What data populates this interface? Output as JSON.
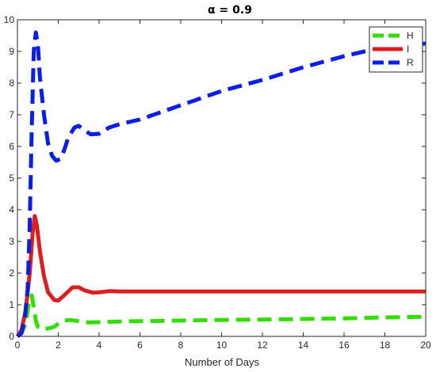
{
  "chart_data": {
    "type": "line",
    "title": "α = 0.9",
    "xlabel": "Number of Days",
    "ylabel": "",
    "xlim": [
      0,
      20
    ],
    "ylim": [
      0,
      10
    ],
    "xticks": [
      0,
      2,
      4,
      6,
      8,
      10,
      12,
      14,
      16,
      18,
      20
    ],
    "yticks": [
      0,
      1,
      2,
      3,
      4,
      5,
      6,
      7,
      8,
      9,
      10
    ],
    "legend_position": "top-right",
    "grid": false,
    "series": [
      {
        "name": "H",
        "color": "#33dd00",
        "style": "dashed",
        "x": [
          0,
          0.2,
          0.4,
          0.55,
          0.7,
          0.8,
          0.9,
          1.0,
          1.2,
          1.5,
          1.8,
          2.0,
          2.3,
          2.6,
          3.0,
          3.5,
          4.0,
          5.0,
          6.0,
          8.0,
          10.0,
          12.0,
          14.0,
          16.0,
          18.0,
          20.0
        ],
        "y": [
          0,
          0.1,
          0.4,
          1.0,
          1.3,
          0.9,
          0.5,
          0.3,
          0.22,
          0.25,
          0.3,
          0.4,
          0.5,
          0.52,
          0.48,
          0.44,
          0.45,
          0.47,
          0.48,
          0.5,
          0.52,
          0.53,
          0.55,
          0.57,
          0.6,
          0.62
        ]
      },
      {
        "name": "I",
        "color": "#dd1e1e",
        "style": "solid",
        "x": [
          0,
          0.2,
          0.4,
          0.6,
          0.75,
          0.85,
          0.95,
          1.1,
          1.3,
          1.5,
          1.8,
          2.0,
          2.3,
          2.7,
          3.0,
          3.3,
          3.7,
          4.0,
          4.5,
          5.0,
          6.0,
          8.0,
          10.0,
          12.0,
          14.0,
          16.0,
          18.0,
          20.0
        ],
        "y": [
          0,
          0.2,
          0.8,
          2.0,
          3.3,
          3.8,
          3.5,
          2.7,
          1.9,
          1.4,
          1.15,
          1.13,
          1.3,
          1.55,
          1.55,
          1.45,
          1.38,
          1.39,
          1.43,
          1.42,
          1.42,
          1.42,
          1.42,
          1.42,
          1.42,
          1.42,
          1.42,
          1.42
        ]
      },
      {
        "name": "R",
        "color": "#0a1ee6",
        "style": "dashed",
        "x": [
          0,
          0.2,
          0.35,
          0.5,
          0.6,
          0.7,
          0.8,
          0.9,
          1.0,
          1.1,
          1.3,
          1.5,
          1.7,
          1.9,
          2.1,
          2.3,
          2.5,
          2.8,
          3.0,
          3.3,
          3.6,
          4.0,
          4.5,
          5.0,
          6.0,
          8.0,
          10.0,
          12.0,
          14.0,
          16.0,
          18.0,
          20.0
        ],
        "y": [
          0,
          0.1,
          0.5,
          1.5,
          3.5,
          6.5,
          9.0,
          9.6,
          9.2,
          8.2,
          7.0,
          6.1,
          5.7,
          5.55,
          5.6,
          5.9,
          6.3,
          6.6,
          6.65,
          6.5,
          6.38,
          6.4,
          6.6,
          6.7,
          6.85,
          7.3,
          7.75,
          8.1,
          8.5,
          8.85,
          9.15,
          9.25
        ]
      }
    ]
  }
}
